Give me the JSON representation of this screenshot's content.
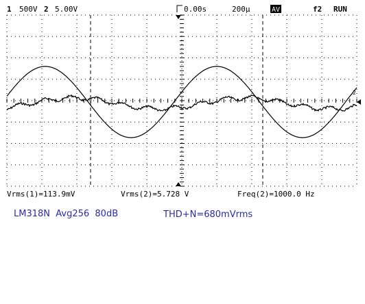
{
  "header": {
    "ch1": "1",
    "ch1_scale": "500V",
    "ch2": "2",
    "ch2_scale": "5.00V",
    "delay": "0.00s",
    "timebase": "200µ",
    "mode": "AV",
    "trigger": "f2",
    "status": "RUN"
  },
  "measurements": {
    "vrms1": "Vrms(1)=113.9mV",
    "vrms2": "Vrms(2)=5.728 V",
    "freq2": "Freq(2)=1000.0 Hz"
  },
  "notes": {
    "device": "LM318N  Avg256  80dB",
    "thd": "THD+N=680mVrms"
  }
}
